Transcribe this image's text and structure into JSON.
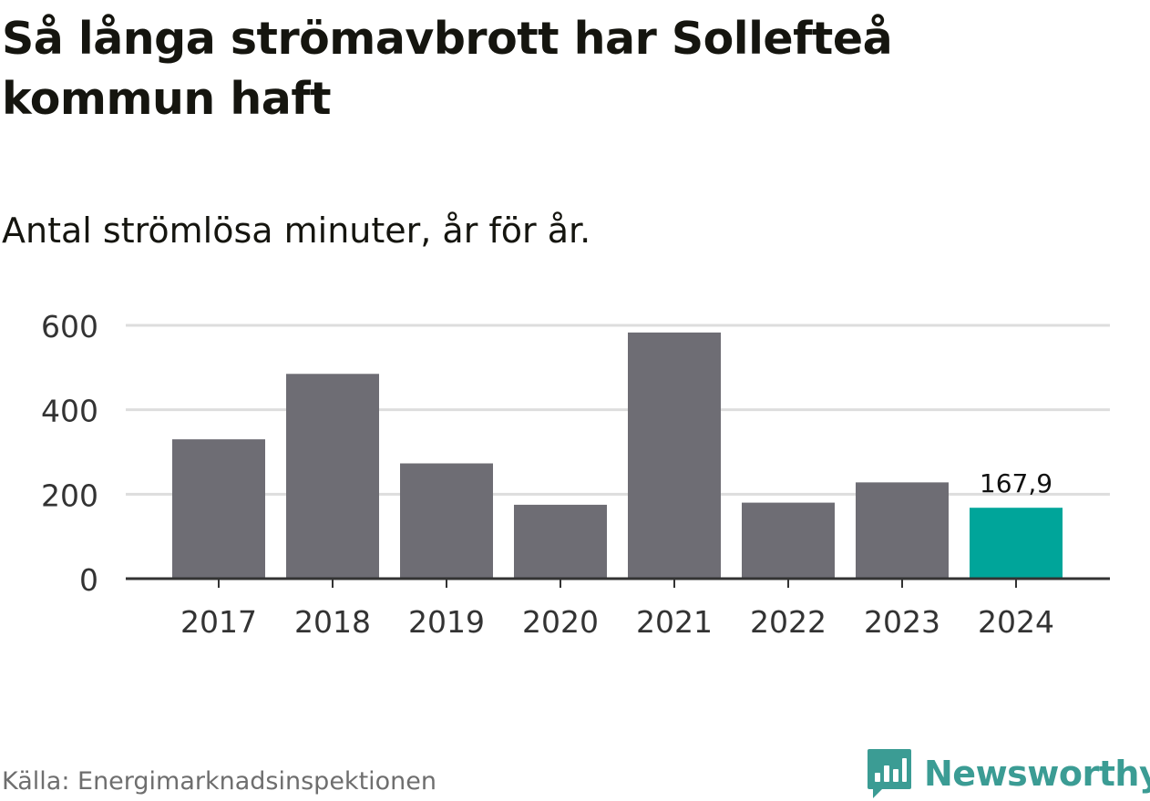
{
  "header": {
    "title": "Så långa strömavbrott har Sollefteå kommun haft",
    "subtitle": "Antal strömlösa minuter, år för år."
  },
  "footer": {
    "source": "Källa: Energimarknadsinspektionen",
    "brand": "Newsworthy"
  },
  "colors": {
    "bar": "#6e6d74",
    "highlight": "#00a59a",
    "grid": "#dddddd",
    "axis": "#333333",
    "brand": "#3b9c94"
  },
  "chart_data": {
    "type": "bar",
    "title": "Så långa strömavbrott har Sollefteå kommun haft",
    "subtitle": "Antal strömlösa minuter, år för år.",
    "xlabel": "",
    "ylabel": "",
    "categories": [
      "2017",
      "2018",
      "2019",
      "2020",
      "2021",
      "2022",
      "2023",
      "2024"
    ],
    "values": [
      330,
      485,
      273,
      175,
      583,
      180,
      228,
      167.9
    ],
    "highlight_index": 7,
    "data_labels": [
      null,
      null,
      null,
      null,
      null,
      null,
      null,
      "167,9"
    ],
    "ylim": [
      0,
      600
    ],
    "yticks": [
      0,
      200,
      400,
      600
    ],
    "ytick_labels": [
      "0",
      "200",
      "400",
      "600"
    ],
    "grid": true,
    "legend": "none"
  }
}
